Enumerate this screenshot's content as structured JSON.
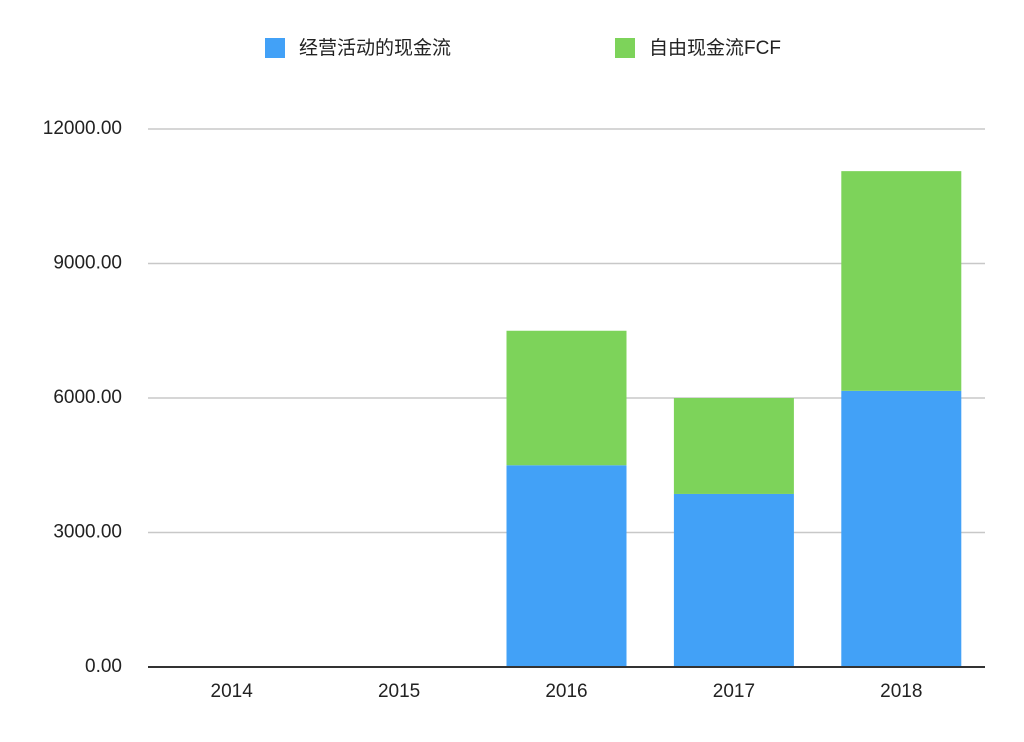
{
  "chart_data": {
    "type": "stacked-bar",
    "categories": [
      "2014",
      "2015",
      "2016",
      "2017",
      "2018"
    ],
    "series": [
      {
        "name": "经营活动的现金流",
        "color": "#42a1f7",
        "values": [
          null,
          null,
          4500,
          3860,
          6160
        ]
      },
      {
        "name": "自由现金流FCF",
        "color": "#7dd35a",
        "values": [
          null,
          null,
          3000,
          2140,
          4900
        ]
      }
    ],
    "ylim": [
      0,
      12000
    ],
    "yticks": [
      {
        "value": 0,
        "label": "0.00"
      },
      {
        "value": 3000,
        "label": "3000.00"
      },
      {
        "value": 6000,
        "label": "6000.00"
      },
      {
        "value": 9000,
        "label": "9000.00"
      },
      {
        "value": 12000,
        "label": "12000.00"
      }
    ],
    "grid": true,
    "legend": "top"
  }
}
